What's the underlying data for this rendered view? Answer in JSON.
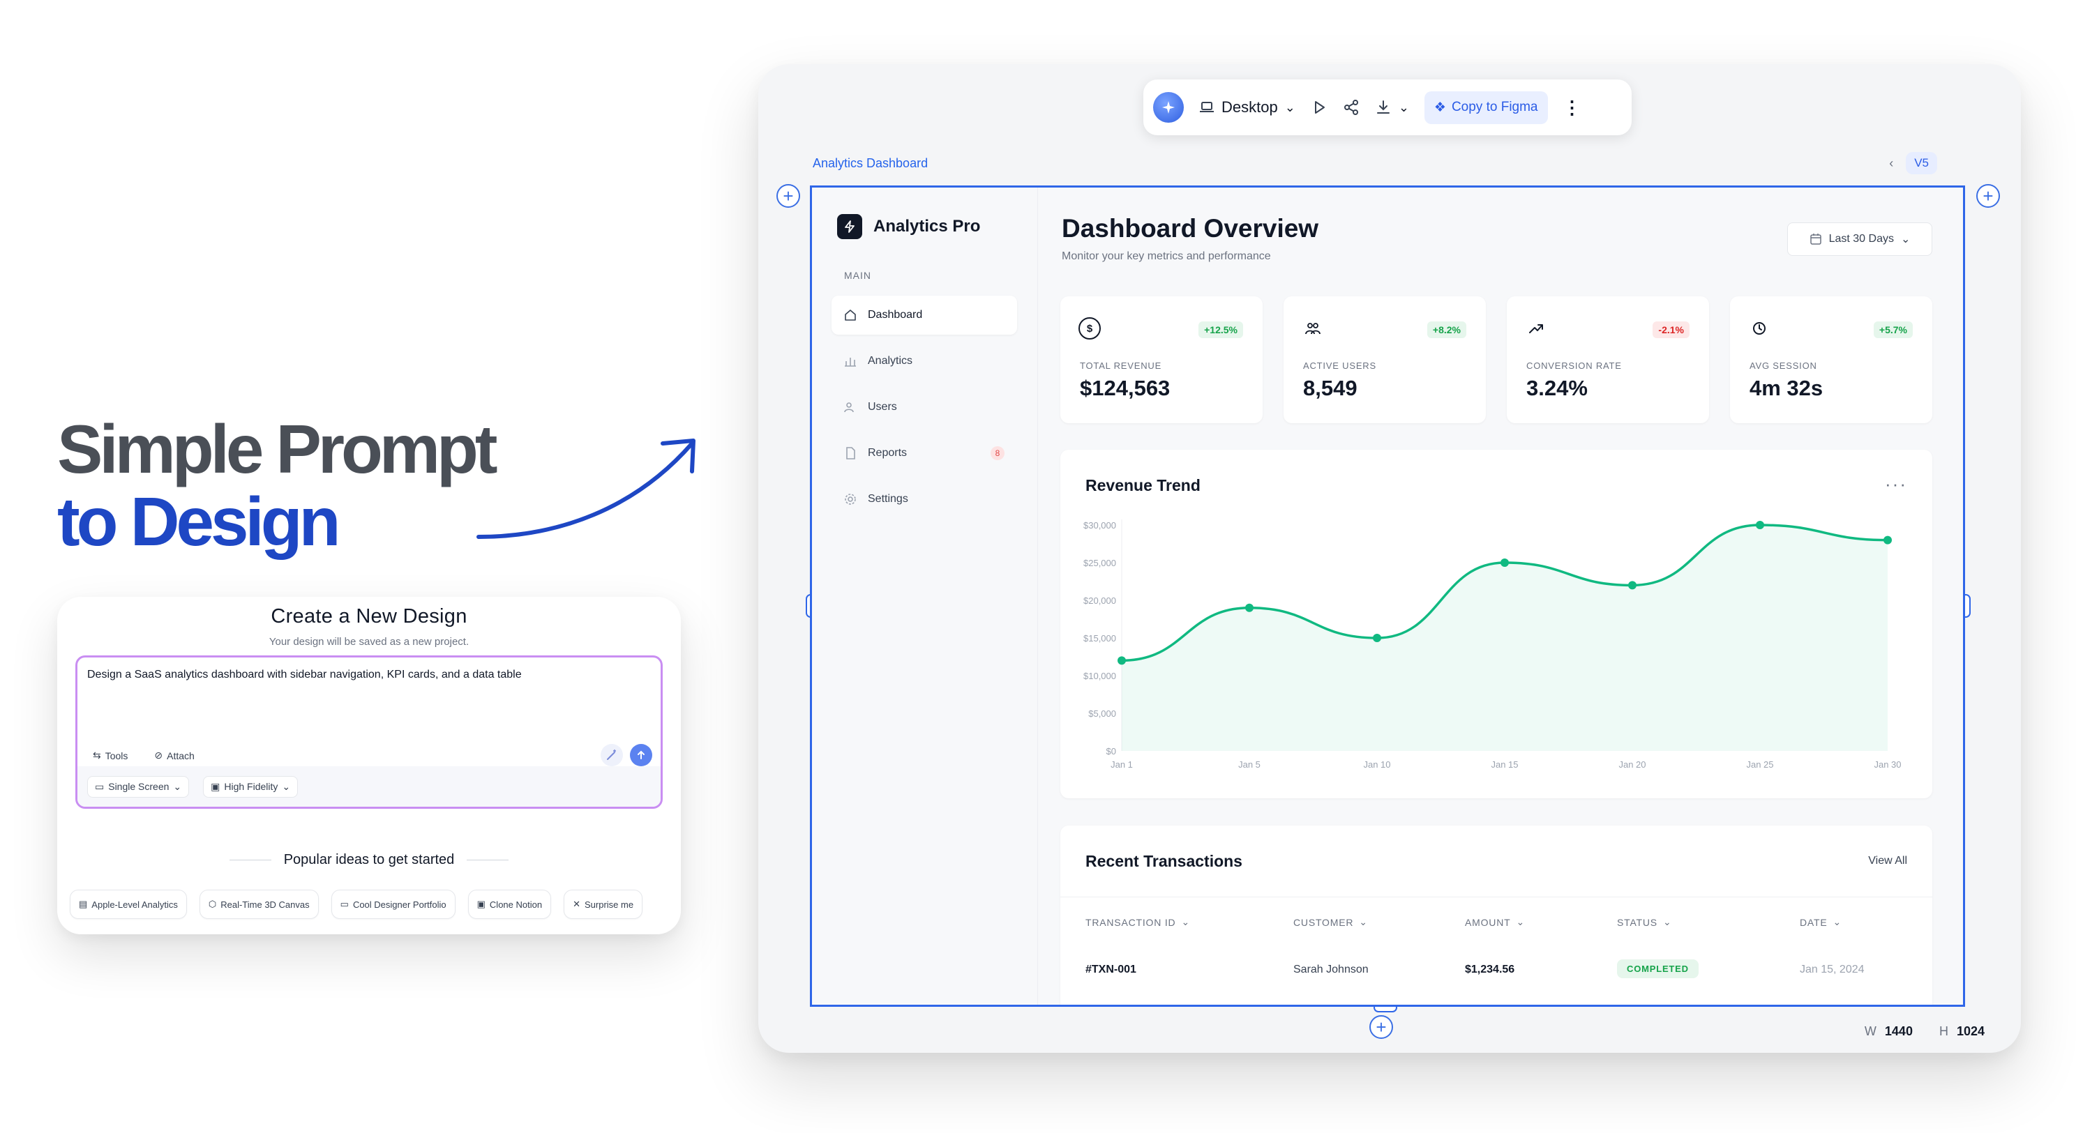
{
  "hero": {
    "line1": "Simple Prompt",
    "line2": "to Design"
  },
  "create": {
    "title": "Create a New Design",
    "subtitle": "Your design will be saved as a new project.",
    "prompt_value": "Design a SaaS analytics dashboard with sidebar navigation, KPI cards, and a data table",
    "tools_label": "Tools",
    "attach_label": "Attach",
    "screen_select": "Single Screen",
    "fidelity_select": "High Fidelity",
    "popular_label": "Popular ideas to get started",
    "ideas": [
      "Apple-Level Analytics",
      "Real-Time 3D Canvas",
      "Cool Designer Portfolio",
      "Clone Notion",
      "Surprise me"
    ]
  },
  "toolbar": {
    "device": "Desktop",
    "figma": "Copy to Figma"
  },
  "editor": {
    "breadcrumb": "Analytics Dashboard",
    "version": "V5",
    "w_label": "W",
    "w_value": "1440",
    "h_label": "H",
    "h_value": "1024"
  },
  "app": {
    "brand": "Analytics Pro",
    "section": "MAIN",
    "nav": [
      {
        "label": "Dashboard",
        "icon": "home-icon"
      },
      {
        "label": "Analytics",
        "icon": "bar-chart-icon"
      },
      {
        "label": "Users",
        "icon": "users-icon"
      },
      {
        "label": "Reports",
        "icon": "file-icon",
        "badge": "8"
      },
      {
        "label": "Settings",
        "icon": "gear-icon"
      }
    ],
    "title": "Dashboard Overview",
    "subtitle": "Monitor your key metrics and performance",
    "range": "Last 30 Days",
    "kpis": [
      {
        "label": "TOTAL REVENUE",
        "value": "$124,563",
        "delta": "+12.5%",
        "icon": "dollar-icon"
      },
      {
        "label": "ACTIVE USERS",
        "value": "8,549",
        "delta": "+8.2%",
        "icon": "users-icon"
      },
      {
        "label": "CONVERSION RATE",
        "value": "3.24%",
        "delta": "-2.1%",
        "icon": "trend-up-icon"
      },
      {
        "label": "AVG SESSION",
        "value": "4m 32s",
        "delta": "+5.7%",
        "icon": "clock-icon"
      }
    ],
    "chart_title": "Revenue Trend",
    "transactions": {
      "title": "Recent Transactions",
      "view_all": "View All",
      "columns": [
        "TRANSACTION ID",
        "CUSTOMER",
        "AMOUNT",
        "STATUS",
        "DATE"
      ],
      "rows": [
        [
          "#TXN-001",
          "Sarah Johnson",
          "$1,234.56",
          "COMPLETED",
          "Jan 15, 2024"
        ]
      ]
    }
  },
  "chart_data": {
    "type": "area",
    "title": "Revenue Trend",
    "xlabel": "",
    "ylabel": "",
    "x": [
      "Jan 1",
      "Jan 5",
      "Jan 10",
      "Jan 15",
      "Jan 20",
      "Jan 25",
      "Jan 30"
    ],
    "series": [
      {
        "values": [
          12000,
          19000,
          15000,
          25000,
          22000,
          30000,
          28000
        ]
      }
    ],
    "yticks": [
      "$0",
      "$5,000",
      "$10,000",
      "$15,000",
      "$20,000",
      "$25,000",
      "$30,000"
    ],
    "ylim": [
      0,
      30000
    ],
    "grid": false,
    "color": "#10b981"
  }
}
